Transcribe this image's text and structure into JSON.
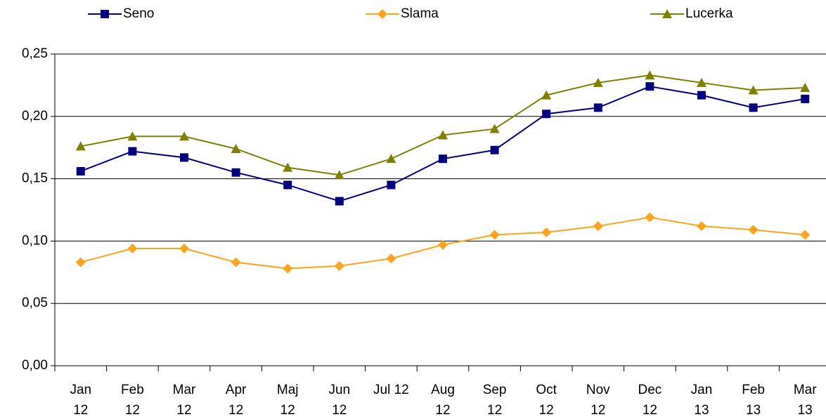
{
  "chart_data": {
    "type": "line",
    "categories": [
      "Jan 12",
      "Feb 12",
      "Mar 12",
      "Apr 12",
      "Maj 12",
      "Jun 12",
      "Jul 12",
      "Aug 12",
      "Sep 12",
      "Oct 12",
      "Nov 12",
      "Dec 12",
      "Jan 13",
      "Feb 13",
      "Mar 13"
    ],
    "series": [
      {
        "name": "Seno",
        "color": "#000080",
        "marker": "square",
        "values": [
          0.156,
          0.172,
          0.167,
          0.155,
          0.145,
          0.132,
          0.145,
          0.166,
          0.173,
          0.202,
          0.207,
          0.224,
          0.217,
          0.207,
          0.214
        ]
      },
      {
        "name": "Slama",
        "color": "#ffa31a",
        "marker": "diamond",
        "values": [
          0.083,
          0.094,
          0.094,
          0.083,
          0.078,
          0.08,
          0.086,
          0.097,
          0.105,
          0.107,
          0.112,
          0.119,
          0.112,
          0.109,
          0.105
        ]
      },
      {
        "name": "Lucerka",
        "color": "#808000",
        "marker": "triangle",
        "values": [
          0.176,
          0.184,
          0.184,
          0.174,
          0.159,
          0.153,
          0.166,
          0.185,
          0.19,
          0.217,
          0.227,
          0.233,
          0.227,
          0.221,
          0.223
        ]
      }
    ],
    "ylim": [
      0,
      0.25
    ],
    "yticks": [
      {
        "value": 0,
        "label": "0,00"
      },
      {
        "value": 0.05,
        "label": "0,05"
      },
      {
        "value": 0.1,
        "label": "0,10"
      },
      {
        "value": 0.15,
        "label": "0,15"
      },
      {
        "value": 0.2,
        "label": "0,20"
      },
      {
        "value": 0.25,
        "label": "0,25"
      }
    ],
    "grid": true,
    "legend": "top"
  }
}
